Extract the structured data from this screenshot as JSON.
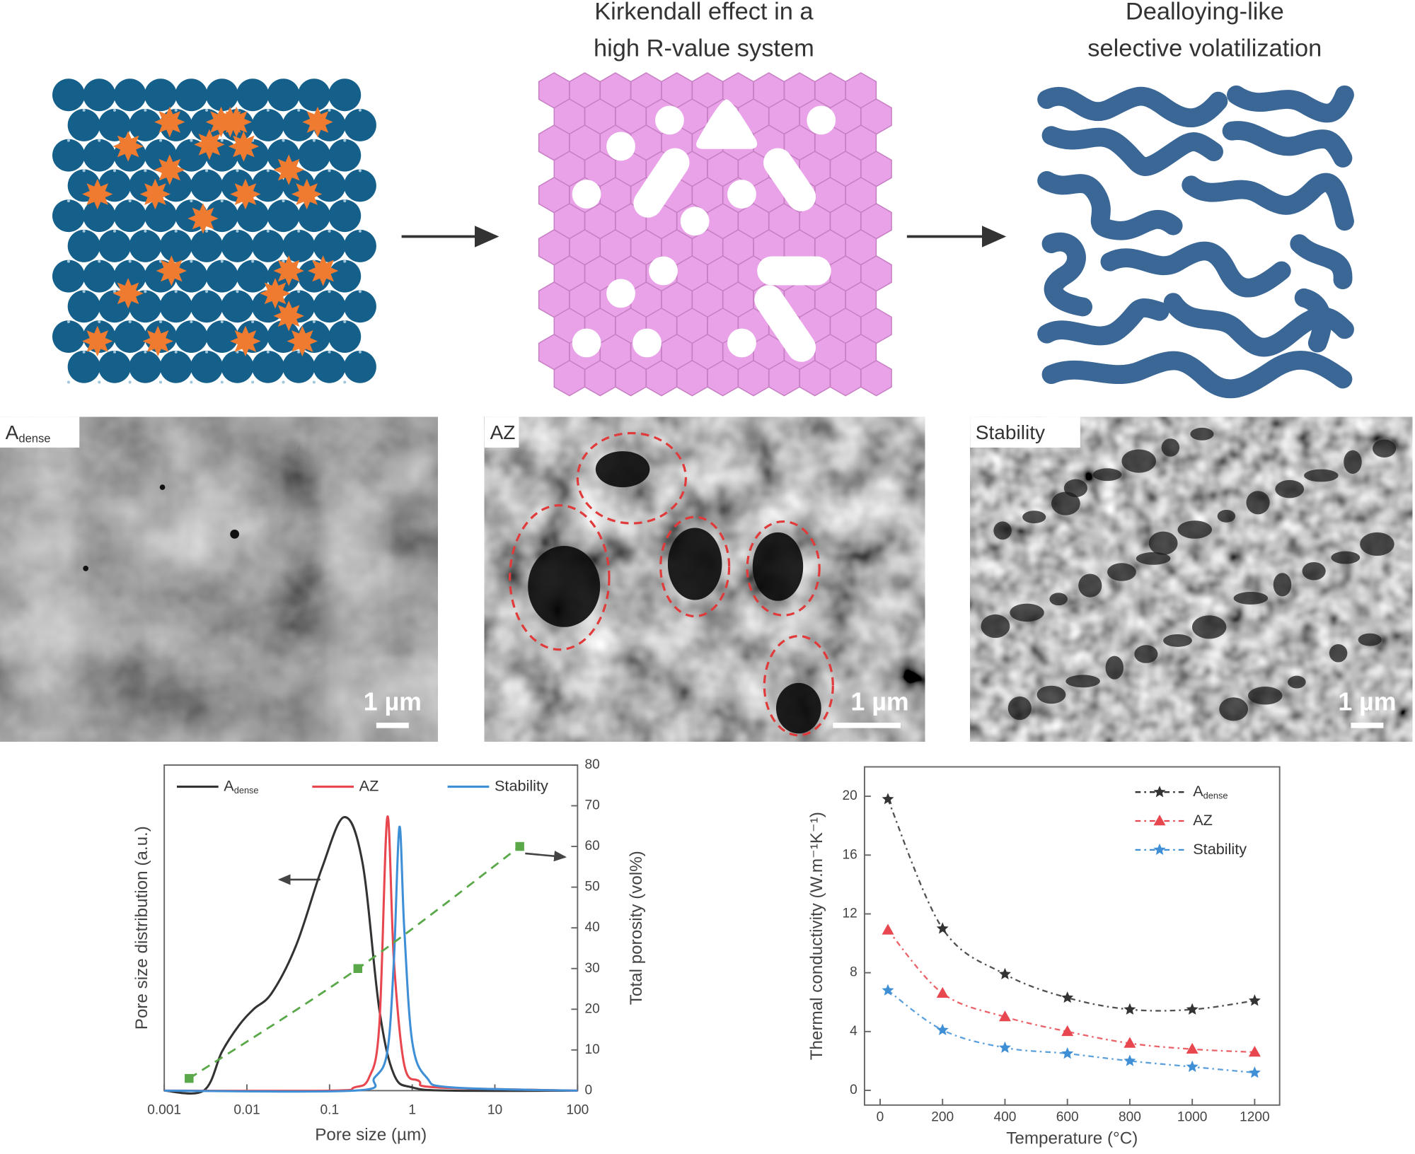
{
  "stage_titles": [
    {
      "lines": [
        "Kirkendall effect in a",
        "high R-value system"
      ]
    },
    {
      "lines": [
        "Dealloying-like",
        "selective volatilization"
      ]
    }
  ],
  "micrographs": [
    {
      "label": "A",
      "label_sub": "dense",
      "scale_bar": "1 µm"
    },
    {
      "label": "AZ",
      "scale_bar": "1 µm"
    },
    {
      "label": "Stability",
      "scale_bar": "1 µm"
    }
  ],
  "chart_data": [
    {
      "type": "line",
      "xlabel": "Pore size (µm)",
      "ylabel": "Pore size distribution (a.u.)",
      "y2label": "Total porosity (vol%)",
      "xscale": "log",
      "xlim": [
        0.001,
        100
      ],
      "xticks": [
        0.001,
        0.01,
        0.1,
        1,
        10,
        100
      ],
      "ylim": [
        0,
        1
      ],
      "y2lim": [
        0,
        80
      ],
      "y2ticks": [
        0,
        10,
        20,
        30,
        40,
        50,
        60,
        70,
        80
      ],
      "legend": "top",
      "series": [
        {
          "name": "A",
          "name_sub": "dense",
          "color": "#333333",
          "x": [
            0.001,
            0.003,
            0.005,
            0.008,
            0.012,
            0.02,
            0.04,
            0.08,
            0.15,
            0.25,
            0.4,
            0.6,
            1,
            3,
            100
          ],
          "values": [
            0,
            0,
            0.12,
            0.2,
            0.25,
            0.3,
            0.45,
            0.68,
            0.84,
            0.7,
            0.25,
            0.05,
            0.01,
            0,
            0
          ]
        },
        {
          "name": "AZ",
          "color": "#e8474f",
          "x": [
            0.001,
            0.1,
            0.2,
            0.3,
            0.4,
            0.5,
            0.6,
            0.8,
            1.2,
            2,
            100
          ],
          "values": [
            0,
            0,
            0.01,
            0.04,
            0.2,
            0.84,
            0.4,
            0.08,
            0.03,
            0.01,
            0
          ]
        },
        {
          "name": "Stability",
          "color": "#3f8fd6",
          "x": [
            0.001,
            0.2,
            0.35,
            0.5,
            0.6,
            0.7,
            0.8,
            1,
            1.5,
            3,
            100
          ],
          "values": [
            0,
            0,
            0.04,
            0.12,
            0.4,
            0.81,
            0.5,
            0.15,
            0.04,
            0.01,
            0
          ]
        },
        {
          "color": "#5aa84a",
          "line": "dashed",
          "marker": "square",
          "axis": "y2",
          "x": [
            0.002,
            0.22,
            20
          ],
          "values": [
            3,
            30,
            60
          ]
        }
      ]
    },
    {
      "type": "scatter",
      "xlabel": "Temperature (°C)",
      "ylabel": "Thermal conductivity (W.m⁻¹K⁻¹)",
      "xlim": [
        -50,
        1280
      ],
      "xticks": [
        0,
        200,
        400,
        600,
        800,
        1000,
        1200
      ],
      "ylim": [
        -1,
        22
      ],
      "yticks": [
        0,
        4,
        8,
        12,
        16,
        20
      ],
      "legend": "top-right",
      "fit": "dashed",
      "x": [
        25,
        200,
        400,
        600,
        800,
        1000,
        1200
      ],
      "series": [
        {
          "name": "A",
          "name_sub": "dense",
          "color": "#333333",
          "marker": "star",
          "values": [
            19.8,
            11.0,
            7.9,
            6.3,
            5.5,
            5.5,
            6.1
          ]
        },
        {
          "name": "AZ",
          "color": "#e8474f",
          "marker": "triangle",
          "values": [
            10.9,
            6.6,
            5.0,
            4.0,
            3.2,
            2.8,
            2.6
          ]
        },
        {
          "name": "Stability",
          "color": "#3f8fd6",
          "marker": "star",
          "values": [
            6.8,
            4.1,
            2.9,
            2.5,
            2.0,
            1.6,
            1.2
          ]
        }
      ]
    }
  ]
}
